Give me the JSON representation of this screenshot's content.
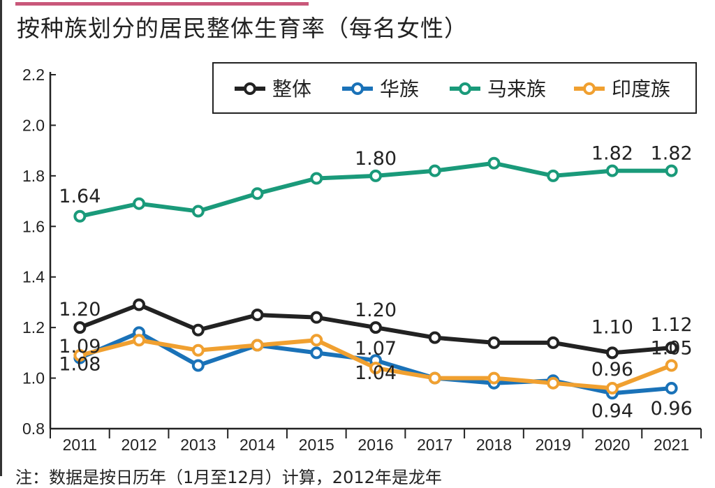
{
  "title": "按种族划分的居民整体生育率（每名女性）",
  "footnote": "注：数据是按日历年（1月至12月）计算，2012年是龙年",
  "colors": {
    "accent_bar": "#c9587a"
  },
  "chart_data": {
    "type": "line",
    "title": "按种族划分的居民整体生育率（每名女性）",
    "xlabel": "",
    "ylabel": "",
    "x": [
      "2011",
      "2012",
      "2013",
      "2014",
      "2015",
      "2016",
      "2017",
      "2018",
      "2019",
      "2020",
      "2021"
    ],
    "ylim": [
      0.8,
      2.2
    ],
    "yticks": [
      "0.8",
      "1.0",
      "1.2",
      "1.4",
      "1.6",
      "1.8",
      "2.0",
      "2.2"
    ],
    "grid": false,
    "legend_position": "top-right",
    "series": [
      {
        "name": "整体",
        "color": "#222222",
        "values": [
          1.2,
          1.29,
          1.19,
          1.25,
          1.24,
          1.2,
          1.16,
          1.14,
          1.14,
          1.1,
          1.12
        ]
      },
      {
        "name": "华族",
        "color": "#1a72b8",
        "values": [
          1.08,
          1.18,
          1.05,
          1.13,
          1.1,
          1.07,
          1.0,
          0.98,
          0.99,
          0.94,
          0.96
        ]
      },
      {
        "name": "马来族",
        "color": "#1a9a7a",
        "values": [
          1.64,
          1.69,
          1.66,
          1.73,
          1.79,
          1.8,
          1.82,
          1.85,
          1.8,
          1.82,
          1.82
        ]
      },
      {
        "name": "印度族",
        "color": "#f0a030",
        "values": [
          1.09,
          1.15,
          1.11,
          1.13,
          1.15,
          1.04,
          1.0,
          1.0,
          0.98,
          0.96,
          1.05
        ]
      }
    ],
    "data_labels": [
      {
        "series": "马来族",
        "x": "2011",
        "text": "1.64"
      },
      {
        "series": "马来族",
        "x": "2016",
        "text": "1.80"
      },
      {
        "series": "马来族",
        "x": "2020",
        "text": "1.82"
      },
      {
        "series": "马来族",
        "x": "2021",
        "text": "1.82"
      },
      {
        "series": "整体",
        "x": "2011",
        "text": "1.20"
      },
      {
        "series": "印度族",
        "x": "2011",
        "text": "1.09"
      },
      {
        "series": "华族",
        "x": "2011",
        "text": "1.08"
      },
      {
        "series": "整体",
        "x": "2016",
        "text": "1.20"
      },
      {
        "series": "华族",
        "x": "2016",
        "text": "1.07"
      },
      {
        "series": "印度族",
        "x": "2016",
        "text": "1.04"
      },
      {
        "series": "整体",
        "x": "2020",
        "text": "1.10"
      },
      {
        "series": "整体",
        "x": "2021",
        "text": "1.12"
      },
      {
        "series": "印度族",
        "x": "2020",
        "text": "0.96"
      },
      {
        "series": "印度族",
        "x": "2021",
        "text": "1.05"
      },
      {
        "series": "华族",
        "x": "2020",
        "text": "0.94"
      },
      {
        "series": "华族",
        "x": "2021",
        "text": "0.96"
      }
    ]
  }
}
